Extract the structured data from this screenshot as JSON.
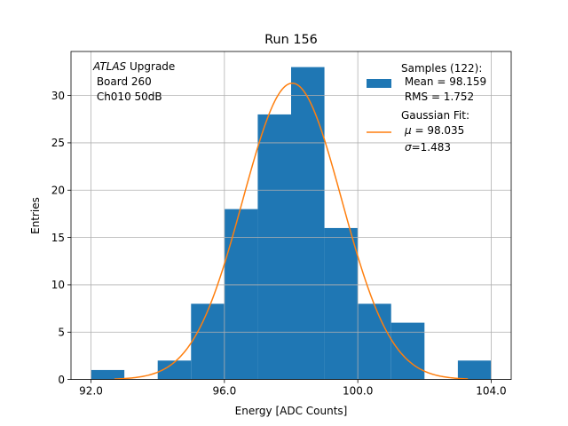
{
  "chart_data": {
    "type": "bar",
    "title": "Run 156",
    "xlabel": "Energy [ADC Counts]",
    "ylabel": "Entries",
    "xlim": [
      91.4,
      104.6
    ],
    "ylim": [
      0,
      34.65
    ],
    "grid": true,
    "xticks": [
      92.0,
      96.0,
      100.0,
      104.0
    ],
    "xtick_labels": [
      "92.0",
      "96.0",
      "100.0",
      "104.0"
    ],
    "yticks": [
      0,
      5,
      10,
      15,
      20,
      25,
      30
    ],
    "ytick_labels": [
      "0",
      "5",
      "10",
      "15",
      "20",
      "25",
      "30"
    ],
    "annotation": {
      "italic": "ATLAS",
      "line1_rest": " Upgrade",
      "line2": " Board 260",
      "line3": " Ch010 50dB"
    },
    "histogram": {
      "name": "Samples (122):",
      "color": "#1f77b4",
      "bin_edges": [
        92,
        93,
        94,
        95,
        96,
        97,
        98,
        99,
        100,
        101,
        102,
        103,
        104
      ],
      "counts": [
        1,
        0,
        2,
        8,
        18,
        28,
        33,
        16,
        8,
        6,
        0,
        2
      ]
    },
    "fit": {
      "type": "gaussian",
      "color": "#ff7f0e",
      "amplitude": 31.3,
      "mu": 98.035,
      "sigma": 1.483,
      "x_range": [
        92.7,
        103.3
      ]
    },
    "legend": {
      "position": "upper right",
      "samples_title": "Samples (122):",
      "samples_mean": " Mean = 98.159",
      "samples_rms": " RMS = 1.752",
      "fit_title": "Gaussian Fit:",
      "fit_mu_symbol": "μ",
      "fit_mu_value": " = 98.035",
      "fit_sigma_symbol": "σ",
      "fit_sigma_value": "=1.483"
    }
  }
}
